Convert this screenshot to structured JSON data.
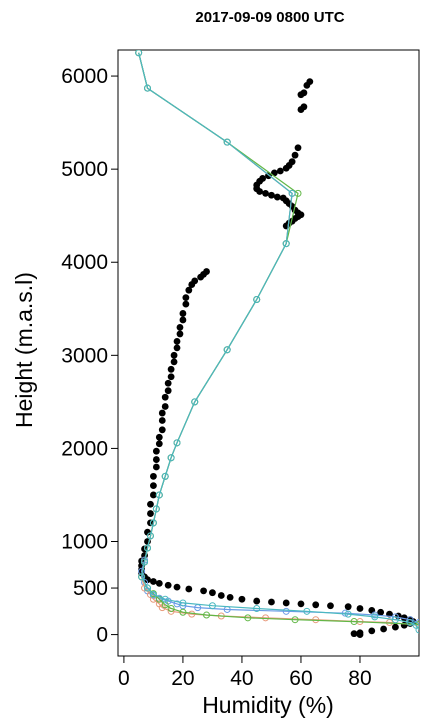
{
  "chart_data": {
    "type": "line",
    "title": "2017-09-09 0800 UTC",
    "xlabel": "Humidity (%)",
    "ylabel": "Height (m.a.s.l)",
    "xlim": [
      -2,
      100
    ],
    "ylim": [
      -230,
      6280
    ],
    "x_ticks": [
      0,
      20,
      40,
      60,
      80
    ],
    "y_ticks": [
      0,
      500,
      1000,
      2000,
      3000,
      4000,
      5000,
      6000
    ],
    "grid": false,
    "series": [
      {
        "color": "#000000",
        "marker": "dot",
        "points": [
          [
            63,
            5940
          ],
          [
            62,
            5900
          ],
          [
            61,
            5820
          ],
          [
            60,
            5800
          ],
          [
            61,
            5670
          ],
          [
            60,
            5640
          ],
          [
            59,
            5230
          ],
          [
            58,
            5150
          ],
          [
            57,
            5080
          ],
          [
            56,
            5040
          ],
          [
            55,
            5010
          ],
          [
            53,
            4980
          ],
          [
            51,
            4960
          ],
          [
            49,
            4930
          ],
          [
            47,
            4900
          ],
          [
            46,
            4870
          ],
          [
            45,
            4830
          ],
          [
            45,
            4790
          ],
          [
            46,
            4760
          ],
          [
            48,
            4740
          ],
          [
            50,
            4720
          ],
          [
            52,
            4700
          ],
          [
            54,
            4690
          ],
          [
            55,
            4660
          ],
          [
            56,
            4630
          ],
          [
            57,
            4600
          ],
          [
            58,
            4560
          ],
          [
            59,
            4530
          ],
          [
            60,
            4510
          ],
          [
            59,
            4490
          ],
          [
            58,
            4470
          ],
          [
            57,
            4440
          ],
          [
            56,
            4420
          ],
          [
            55,
            4390
          ],
          [
            28,
            3900
          ],
          [
            27,
            3870
          ],
          [
            26,
            3840
          ],
          [
            24,
            3800
          ],
          [
            23,
            3760
          ],
          [
            22,
            3700
          ],
          [
            21,
            3620
          ],
          [
            21,
            3550
          ],
          [
            20,
            3450
          ],
          [
            20,
            3380
          ],
          [
            19,
            3300
          ],
          [
            19,
            3230
          ],
          [
            18,
            3150
          ],
          [
            18,
            3080
          ],
          [
            17,
            3000
          ],
          [
            17,
            2930
          ],
          [
            16,
            2850
          ],
          [
            16,
            2770
          ],
          [
            15,
            2700
          ],
          [
            15,
            2620
          ],
          [
            14,
            2550
          ],
          [
            14,
            2450
          ],
          [
            13,
            2380
          ],
          [
            13,
            2300
          ],
          [
            13,
            2200
          ],
          [
            12,
            2120
          ],
          [
            12,
            2050
          ],
          [
            11,
            1970
          ],
          [
            11,
            1880
          ],
          [
            11,
            1800
          ],
          [
            10,
            1700
          ],
          [
            10,
            1600
          ],
          [
            10,
            1500
          ],
          [
            9,
            1400
          ],
          [
            9,
            1300
          ],
          [
            9,
            1200
          ],
          [
            8,
            1100
          ],
          [
            8,
            1000
          ],
          [
            7,
            920
          ],
          [
            7,
            850
          ],
          [
            6,
            790
          ],
          [
            6,
            740
          ],
          [
            6,
            700
          ],
          [
            6,
            660
          ],
          [
            7,
            620
          ],
          [
            8,
            590
          ],
          [
            10,
            570
          ],
          [
            12,
            550
          ],
          [
            15,
            530
          ],
          [
            18,
            510
          ],
          [
            22,
            490
          ],
          [
            27,
            470
          ],
          [
            30,
            450
          ],
          [
            33,
            420
          ],
          [
            36,
            400
          ],
          [
            40,
            380
          ],
          [
            45,
            360
          ],
          [
            50,
            350
          ],
          [
            55,
            340
          ],
          [
            60,
            330
          ],
          [
            65,
            320
          ],
          [
            70,
            310
          ],
          [
            76,
            300
          ],
          [
            80,
            280
          ],
          [
            84,
            260
          ],
          [
            87,
            240
          ],
          [
            90,
            220
          ],
          [
            93,
            200
          ],
          [
            95,
            180
          ],
          [
            97,
            160
          ],
          [
            98,
            140
          ],
          [
            97,
            120
          ],
          [
            95,
            100
          ],
          [
            92,
            80
          ],
          [
            88,
            60
          ],
          [
            84,
            40
          ],
          [
            80,
            20
          ],
          [
            78,
            10
          ],
          [
            80,
            0
          ]
        ]
      },
      {
        "color": "#6a9be6",
        "marker": "circle",
        "points": [
          [
            100,
            130
          ],
          [
            97,
            160
          ],
          [
            92,
            190
          ],
          [
            85,
            210
          ],
          [
            75,
            230
          ],
          [
            55,
            250
          ],
          [
            35,
            270
          ],
          [
            25,
            290
          ],
          [
            20,
            310
          ],
          [
            18,
            330
          ],
          [
            15,
            360
          ],
          [
            12,
            390
          ],
          [
            10,
            420
          ],
          [
            8,
            470
          ],
          [
            7,
            560
          ],
          [
            6,
            680
          ],
          [
            7,
            800
          ],
          [
            8,
            930
          ],
          [
            9,
            1060
          ],
          [
            10,
            1200
          ],
          [
            11,
            1350
          ],
          [
            12,
            1500
          ],
          [
            14,
            1700
          ],
          [
            16,
            1900
          ],
          [
            18,
            2060
          ],
          [
            24,
            2500
          ],
          [
            35,
            3060
          ],
          [
            45,
            3600
          ],
          [
            55,
            4200
          ],
          [
            57,
            4740
          ],
          [
            35,
            5290
          ],
          [
            8,
            5870
          ],
          [
            5,
            6250
          ]
        ]
      },
      {
        "color": "#e89a7c",
        "marker": "circle",
        "points": [
          [
            100,
            100
          ],
          [
            90,
            130
          ],
          [
            80,
            140
          ],
          [
            65,
            160
          ],
          [
            48,
            180
          ],
          [
            33,
            200
          ],
          [
            23,
            220
          ],
          [
            16,
            250
          ],
          [
            13,
            290
          ],
          [
            12,
            330
          ],
          [
            10,
            380
          ],
          [
            9,
            430
          ],
          [
            7,
            500
          ],
          [
            6,
            620
          ],
          [
            7,
            780
          ],
          [
            8,
            930
          ],
          [
            9,
            1060
          ],
          [
            10,
            1200
          ],
          [
            11,
            1350
          ],
          [
            12,
            1500
          ],
          [
            14,
            1700
          ],
          [
            16,
            1900
          ],
          [
            18,
            2060
          ],
          [
            24,
            2500
          ],
          [
            35,
            3060
          ],
          [
            45,
            3600
          ],
          [
            55,
            4200
          ],
          [
            57,
            4740
          ],
          [
            35,
            5290
          ],
          [
            8,
            5870
          ],
          [
            5,
            6250
          ]
        ]
      },
      {
        "color": "#61b746",
        "marker": "circle",
        "points": [
          [
            100,
            110
          ],
          [
            78,
            140
          ],
          [
            58,
            160
          ],
          [
            42,
            180
          ],
          [
            28,
            210
          ],
          [
            20,
            240
          ],
          [
            16,
            280
          ],
          [
            14,
            320
          ],
          [
            12,
            380
          ],
          [
            10,
            440
          ],
          [
            8,
            500
          ],
          [
            6,
            620
          ],
          [
            7,
            780
          ],
          [
            8,
            930
          ],
          [
            9,
            1060
          ],
          [
            10,
            1200
          ],
          [
            11,
            1350
          ],
          [
            12,
            1500
          ],
          [
            14,
            1700
          ],
          [
            16,
            1900
          ],
          [
            18,
            2060
          ],
          [
            24,
            2500
          ],
          [
            35,
            3060
          ],
          [
            45,
            3600
          ],
          [
            55,
            4200
          ],
          [
            59,
            4740
          ],
          [
            35,
            5290
          ],
          [
            8,
            5870
          ],
          [
            5,
            6250
          ]
        ]
      },
      {
        "color": "#4ab8c0",
        "marker": "circle",
        "points": [
          [
            100,
            50
          ],
          [
            99,
            100
          ],
          [
            97,
            130
          ],
          [
            92,
            160
          ],
          [
            85,
            190
          ],
          [
            76,
            220
          ],
          [
            62,
            250
          ],
          [
            45,
            280
          ],
          [
            30,
            310
          ],
          [
            20,
            340
          ],
          [
            14,
            380
          ],
          [
            10,
            430
          ],
          [
            8,
            500
          ],
          [
            6,
            620
          ],
          [
            7,
            780
          ],
          [
            8,
            930
          ],
          [
            9,
            1060
          ],
          [
            10,
            1200
          ],
          [
            11,
            1350
          ],
          [
            12,
            1500
          ],
          [
            14,
            1700
          ],
          [
            16,
            1900
          ],
          [
            18,
            2060
          ],
          [
            24,
            2500
          ],
          [
            35,
            3060
          ],
          [
            45,
            3600
          ],
          [
            55,
            4200
          ],
          [
            57,
            4740
          ],
          [
            35,
            5290
          ],
          [
            8,
            5870
          ],
          [
            5,
            6250
          ]
        ]
      }
    ]
  }
}
